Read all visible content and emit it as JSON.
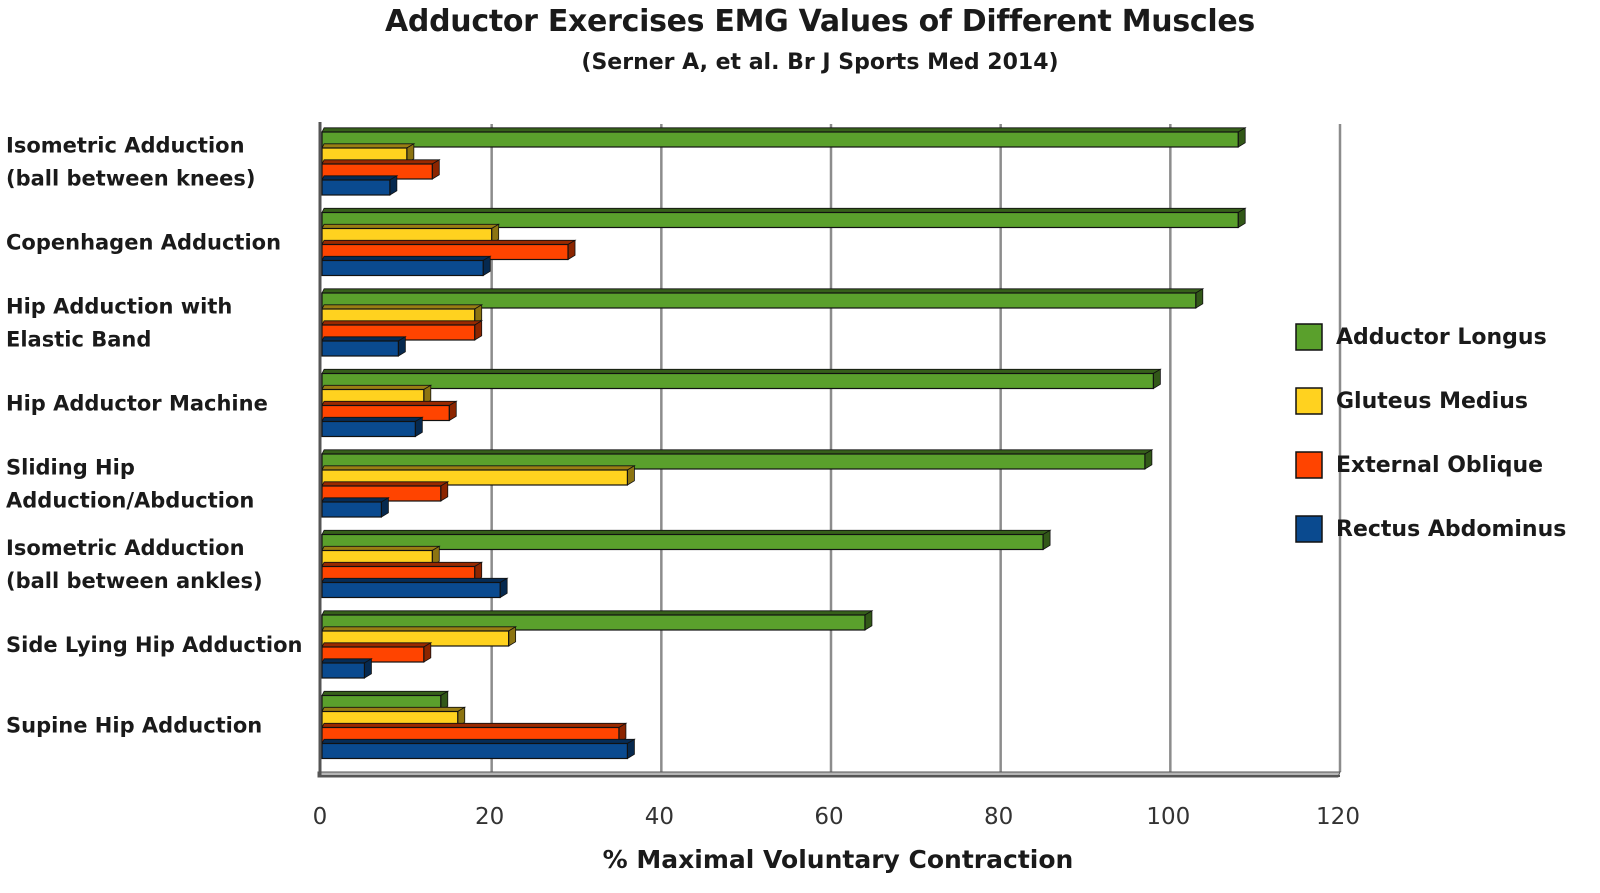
{
  "chart_data": {
    "type": "bar",
    "orientation": "horizontal",
    "title": "Adductor Exercises EMG Values of Different Muscles",
    "subtitle": "(Serner A, et al. Br J Sports Med 2014)",
    "xlabel": "% Maximal Voluntary Contraction",
    "ylabel": "",
    "xlim": [
      0,
      120
    ],
    "xticks": [
      0,
      20,
      40,
      60,
      80,
      100,
      120
    ],
    "grid": true,
    "legend_position": "right",
    "categories": [
      [
        "Isometric Adduction",
        "(ball between knees)"
      ],
      [
        "Copenhagen Adduction"
      ],
      [
        "Hip Adduction with",
        "Elastic Band"
      ],
      [
        "Hip Adductor Machine"
      ],
      [
        "Sliding Hip",
        "Adduction/Abduction"
      ],
      [
        "Isometric Adduction",
        "(ball between ankles)"
      ],
      [
        "Side Lying Hip Adduction"
      ],
      [
        "Supine Hip Adduction"
      ]
    ],
    "series": [
      {
        "name": "Adductor Longus",
        "color": "#5aa02c",
        "values": [
          108,
          108,
          103,
          98,
          97,
          85,
          64,
          14
        ]
      },
      {
        "name": "Gluteus Medius",
        "color": "#ffd21f",
        "values": [
          10,
          20,
          18,
          12,
          36,
          13,
          22,
          16
        ]
      },
      {
        "name": "External Oblique",
        "color": "#ff4400",
        "values": [
          13,
          29,
          18,
          15,
          14,
          18,
          12,
          35
        ]
      },
      {
        "name": "Rectus Abdominus",
        "color": "#0a4a8f",
        "values": [
          8,
          19,
          9,
          11,
          7,
          21,
          5,
          36
        ]
      }
    ]
  }
}
